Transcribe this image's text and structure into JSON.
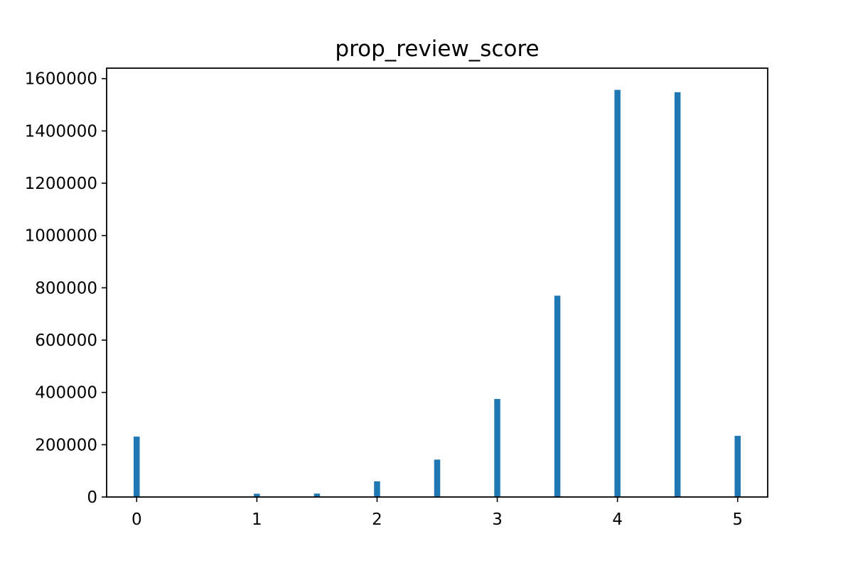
{
  "chart_data": {
    "type": "bar",
    "title": "prop_review_score",
    "xlabel": "",
    "ylabel": "",
    "x": [
      0,
      1,
      1.5,
      2,
      2.5,
      3,
      3.5,
      4,
      4.5,
      5
    ],
    "values": [
      231000,
      12500,
      13000,
      60000,
      143000,
      375000,
      770000,
      1557000,
      1548000,
      234000
    ],
    "xlim": [
      -0.25,
      5.25
    ],
    "ylim": [
      0,
      1640000
    ],
    "xticks": [
      0,
      1,
      2,
      3,
      4,
      5
    ],
    "xtick_labels": [
      "0",
      "1",
      "2",
      "3",
      "4",
      "5"
    ],
    "yticks": [
      0,
      200000,
      400000,
      600000,
      800000,
      1000000,
      1200000,
      1400000,
      1600000
    ],
    "ytick_labels": [
      "0",
      "200000",
      "400000",
      "600000",
      "800000",
      "1000000",
      "1200000",
      "1400000",
      "1600000"
    ],
    "grid": false,
    "legend": "none",
    "bar_color": "#1f77b4"
  }
}
